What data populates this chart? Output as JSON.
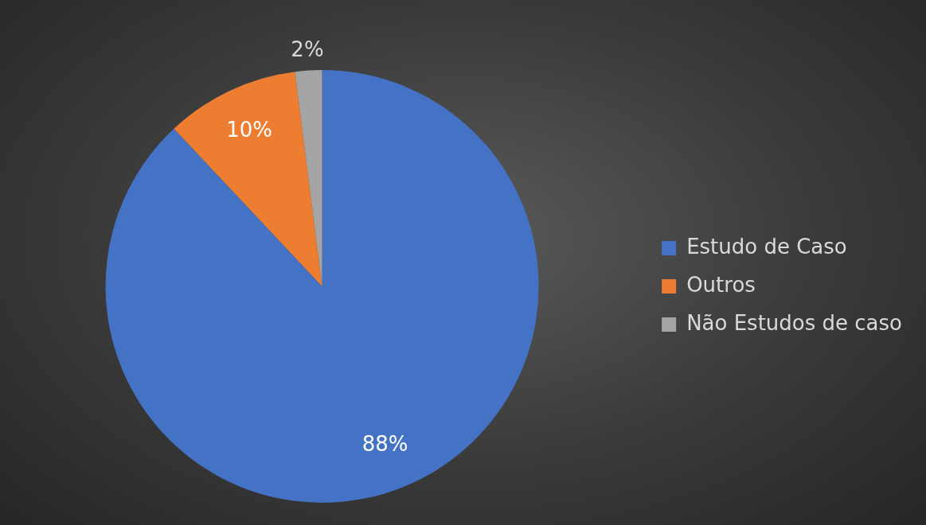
{
  "chart_data": {
    "type": "pie",
    "categories": [
      "Estudo de Caso",
      "Outros",
      "Não Estudos de caso"
    ],
    "values": [
      88,
      10,
      2
    ],
    "colors": [
      "#4472c4",
      "#ed7d31",
      "#a5a5a5"
    ],
    "value_labels": [
      "88%",
      "10%",
      "2%"
    ],
    "legend": "right"
  }
}
